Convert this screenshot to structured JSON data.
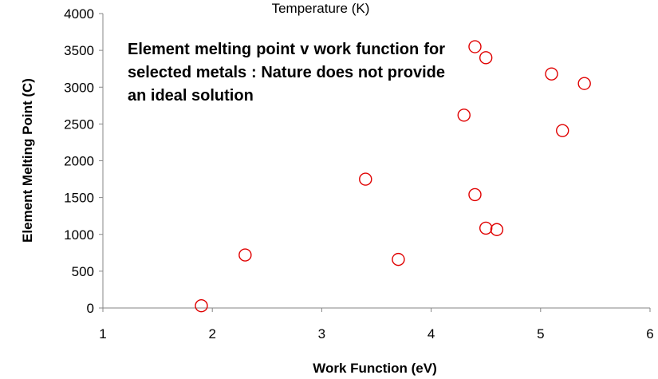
{
  "chart_data": {
    "type": "scatter",
    "title": "Temperature (K)",
    "xlabel": "Work Function (eV)",
    "ylabel": "Element Melting Point (C)",
    "annotation": "Element melting point v work function for selected metals : Nature does not provide an ideal solution",
    "xlim": [
      1,
      6
    ],
    "ylim": [
      0,
      4000
    ],
    "x_ticks": [
      1,
      2,
      3,
      4,
      5,
      6
    ],
    "y_ticks": [
      0,
      500,
      1000,
      1500,
      2000,
      2500,
      3000,
      3500,
      4000
    ],
    "grid": false,
    "legend": "none",
    "marker": "open-circle",
    "marker_color": "#e00000",
    "points": [
      {
        "x": 1.9,
        "y": 30
      },
      {
        "x": 2.3,
        "y": 720
      },
      {
        "x": 3.4,
        "y": 1750
      },
      {
        "x": 3.7,
        "y": 660
      },
      {
        "x": 4.3,
        "y": 2620
      },
      {
        "x": 4.4,
        "y": 3550
      },
      {
        "x": 4.4,
        "y": 1540
      },
      {
        "x": 4.5,
        "y": 3400
      },
      {
        "x": 4.5,
        "y": 1085
      },
      {
        "x": 4.6,
        "y": 1065
      },
      {
        "x": 5.1,
        "y": 3180
      },
      {
        "x": 5.2,
        "y": 2410
      },
      {
        "x": 5.4,
        "y": 3050
      }
    ]
  }
}
